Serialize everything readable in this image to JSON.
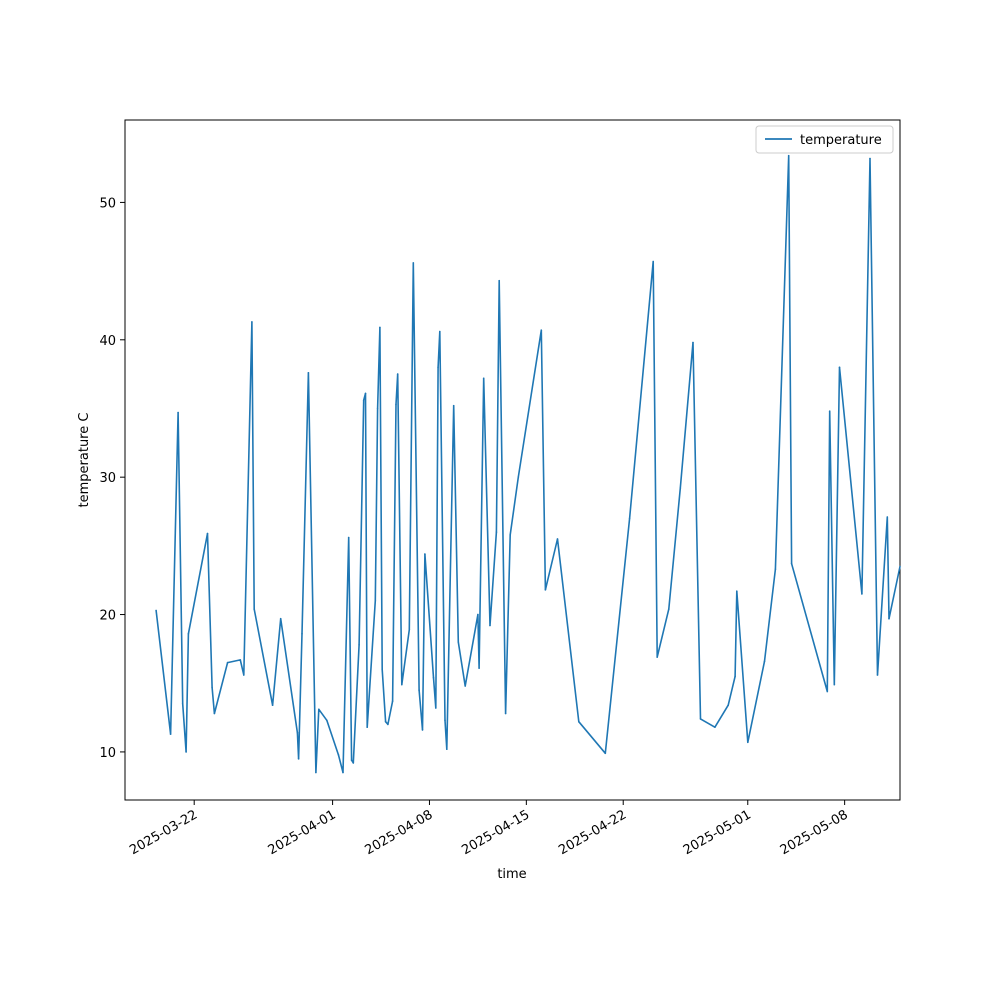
{
  "chart_data": {
    "type": "line",
    "title": "",
    "xlabel": "time",
    "ylabel": "temperature C",
    "xlim": [
      "2025-03-17",
      "2025-05-12"
    ],
    "ylim": [
      6.5,
      56
    ],
    "grid": false,
    "legend": {
      "position": "top-right",
      "entries": [
        "temperature"
      ]
    },
    "colors": {
      "series": "#1f77b4",
      "axes": "#000000",
      "background": "#ffffff"
    },
    "x_ticks": [
      "2025-03-22",
      "2025-04-01",
      "2025-04-08",
      "2025-04-15",
      "2025-04-22",
      "2025-05-01",
      "2025-05-08"
    ],
    "y_ticks": [
      10,
      20,
      30,
      40,
      50
    ],
    "series": [
      {
        "name": "temperature",
        "points": [
          [
            "2025-03-19T06:00",
            20.3
          ],
          [
            "2025-03-20T07:00",
            11.3
          ],
          [
            "2025-03-20T20:00",
            34.7
          ],
          [
            "2025-03-21T04:00",
            13.5
          ],
          [
            "2025-03-21T10:00",
            10.0
          ],
          [
            "2025-03-21T14:00",
            18.6
          ],
          [
            "2025-03-22T23:00",
            25.9
          ],
          [
            "2025-03-23T07:00",
            14.7
          ],
          [
            "2025-03-23T11:00",
            12.8
          ],
          [
            "2025-03-24T10:00",
            16.5
          ],
          [
            "2025-03-25T08:00",
            16.7
          ],
          [
            "2025-03-25T14:00",
            15.6
          ],
          [
            "2025-03-26T04:00",
            41.3
          ],
          [
            "2025-03-26T08:00",
            20.4
          ],
          [
            "2025-03-27T16:00",
            13.4
          ],
          [
            "2025-03-28T06:00",
            19.7
          ],
          [
            "2025-03-29T11:00",
            11.4
          ],
          [
            "2025-03-29T13:00",
            9.5
          ],
          [
            "2025-03-29T19:00",
            18.6
          ],
          [
            "2025-03-30T06:00",
            37.6
          ],
          [
            "2025-03-30T19:00",
            8.5
          ],
          [
            "2025-03-31T00:00",
            13.1
          ],
          [
            "2025-03-31T14:00",
            12.3
          ],
          [
            "2025-04-01T10:00",
            9.8
          ],
          [
            "2025-04-01T18:00",
            8.5
          ],
          [
            "2025-04-02T04:00",
            25.6
          ],
          [
            "2025-04-02T09:00",
            9.4
          ],
          [
            "2025-04-02T12:00",
            9.2
          ],
          [
            "2025-04-02T22:00",
            17.8
          ],
          [
            "2025-04-03T06:00",
            35.6
          ],
          [
            "2025-04-03T09:00",
            36.1
          ],
          [
            "2025-04-03T12:00",
            11.8
          ],
          [
            "2025-04-04T02:00",
            21.0
          ],
          [
            "2025-04-04T06:00",
            35.0
          ],
          [
            "2025-04-04T10:00",
            40.9
          ],
          [
            "2025-04-04T14:00",
            16.0
          ],
          [
            "2025-04-04T20:00",
            12.2
          ],
          [
            "2025-04-05T00:00",
            12.0
          ],
          [
            "2025-04-05T08:00",
            13.7
          ],
          [
            "2025-04-05T14:00",
            35.3
          ],
          [
            "2025-04-05T17:00",
            37.5
          ],
          [
            "2025-04-06T00:00",
            14.9
          ],
          [
            "2025-04-06T13:00",
            18.9
          ],
          [
            "2025-04-06T20:00",
            45.6
          ],
          [
            "2025-04-07T06:00",
            14.5
          ],
          [
            "2025-04-07T12:00",
            11.6
          ],
          [
            "2025-04-07T16:00",
            24.4
          ],
          [
            "2025-04-08T07:00",
            15.4
          ],
          [
            "2025-04-08T11:00",
            13.2
          ],
          [
            "2025-04-08T15:00",
            38.0
          ],
          [
            "2025-04-08T18:00",
            40.6
          ],
          [
            "2025-04-09T03:00",
            12.3
          ],
          [
            "2025-04-09T06:00",
            10.2
          ],
          [
            "2025-04-09T18:00",
            35.2
          ],
          [
            "2025-04-10T02:00",
            18.0
          ],
          [
            "2025-04-10T14:00",
            14.8
          ],
          [
            "2025-04-11T12:00",
            20.0
          ],
          [
            "2025-04-11T14:00",
            16.1
          ],
          [
            "2025-04-11T22:00",
            37.2
          ],
          [
            "2025-04-12T09:00",
            19.2
          ],
          [
            "2025-04-12T20:00",
            26.0
          ],
          [
            "2025-04-13T01:00",
            44.3
          ],
          [
            "2025-04-13T12:00",
            12.8
          ],
          [
            "2025-04-13T20:00",
            25.8
          ],
          [
            "2025-04-14T10:00",
            30.0
          ],
          [
            "2025-04-16T02:00",
            40.7
          ],
          [
            "2025-04-16T09:00",
            21.8
          ],
          [
            "2025-04-17T06:00",
            25.5
          ],
          [
            "2025-04-18T19:00",
            12.2
          ],
          [
            "2025-04-20T17:00",
            9.9
          ],
          [
            "2025-04-22T11:00",
            27.0
          ],
          [
            "2025-04-24T04:00",
            45.7
          ],
          [
            "2025-04-24T11:00",
            16.9
          ],
          [
            "2025-04-25T07:00",
            20.4
          ],
          [
            "2025-04-26T03:00",
            29.2
          ],
          [
            "2025-04-27T01:00",
            39.8
          ],
          [
            "2025-04-27T14:00",
            12.4
          ],
          [
            "2025-04-28T15:00",
            11.8
          ],
          [
            "2025-04-29T14:00",
            13.4
          ],
          [
            "2025-04-30T02:00",
            15.5
          ],
          [
            "2025-04-30T05:00",
            21.7
          ],
          [
            "2025-04-31T00:00",
            10.7
          ],
          [
            "2025-05-02T05:00",
            16.6
          ],
          [
            "2025-05-03T00:00",
            23.3
          ],
          [
            "2025-05-03T23:00",
            53.4
          ],
          [
            "2025-05-04T04:00",
            23.7
          ],
          [
            "2025-05-06T18:00",
            14.4
          ],
          [
            "2025-05-06T22:00",
            34.8
          ],
          [
            "2025-05-07T06:00",
            14.9
          ],
          [
            "2025-05-07T15:00",
            38.0
          ],
          [
            "2025-05-09T06:00",
            21.5
          ],
          [
            "2025-05-09T20:00",
            53.2
          ],
          [
            "2025-05-10T09:00",
            15.6
          ],
          [
            "2025-05-11T02:00",
            27.1
          ],
          [
            "2025-05-11T05:00",
            19.7
          ],
          [
            "2025-05-12T00:00",
            23.5
          ]
        ]
      }
    ]
  }
}
